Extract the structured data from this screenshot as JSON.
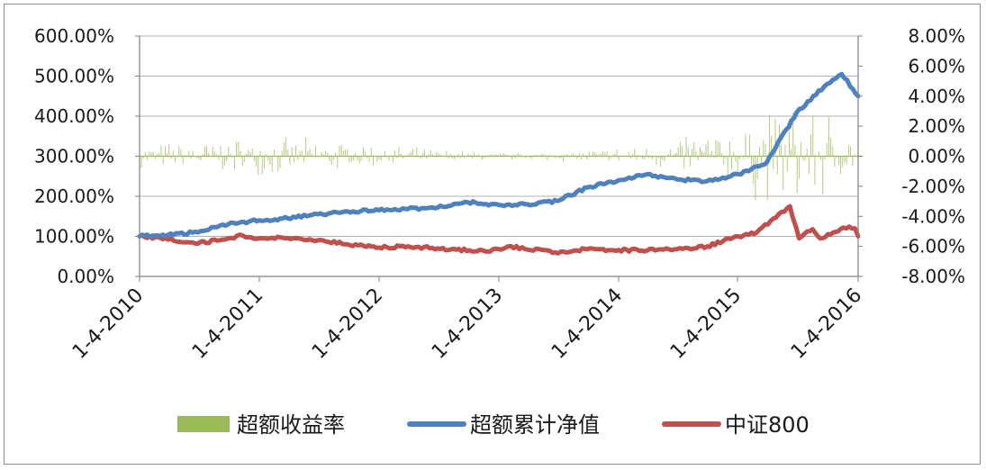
{
  "chart_data": {
    "type": "line",
    "title": "",
    "y_left": {
      "ticks": [
        "600.00%",
        "500.00%",
        "400.00%",
        "300.00%",
        "200.00%",
        "100.00%",
        "0.00%"
      ],
      "range": [
        0,
        600
      ]
    },
    "y_right": {
      "ticks": [
        "8.00%",
        "6.00%",
        "4.00%",
        "2.00%",
        "0.00%",
        "-2.00%",
        "-4.00%",
        "-6.00%",
        "-8.00%"
      ],
      "range": [
        -8,
        8
      ]
    },
    "x_ticks": [
      "1-4-2010",
      "1-4-2011",
      "1-4-2012",
      "1-4-2013",
      "1-4-2014",
      "1-4-2015",
      "1-4-2016"
    ],
    "x_range": [
      "2010-01-04",
      "2016-01-04"
    ],
    "grid": true,
    "legend_position": "bottom",
    "colors": {
      "excess_return": "#9BBB59",
      "excess_nav": "#4F81BD",
      "csi800": "#C0504D",
      "grid": "#b0b0b0",
      "axis": "#808080"
    },
    "series": [
      {
        "name": "超额收益率",
        "kind": "bar",
        "axis": "right",
        "note_values": "daily values, approx. -2% to +2%",
        "seed": 7
      },
      {
        "name": "超额累计净值",
        "kind": "line",
        "axis": "left",
        "points": [
          [
            "2010-01-04",
            100
          ],
          [
            "2010-04-01",
            104
          ],
          [
            "2010-07-01",
            110
          ],
          [
            "2010-10-01",
            130
          ],
          [
            "2011-01-04",
            140
          ],
          [
            "2011-04-01",
            145
          ],
          [
            "2011-07-01",
            155
          ],
          [
            "2011-10-01",
            162
          ],
          [
            "2012-01-04",
            165
          ],
          [
            "2012-04-01",
            168
          ],
          [
            "2012-07-01",
            172
          ],
          [
            "2012-10-01",
            185
          ],
          [
            "2013-01-04",
            178
          ],
          [
            "2013-04-01",
            180
          ],
          [
            "2013-07-01",
            188
          ],
          [
            "2013-10-01",
            222
          ],
          [
            "2014-01-04",
            240
          ],
          [
            "2014-04-01",
            255
          ],
          [
            "2014-07-01",
            242
          ],
          [
            "2014-10-01",
            238
          ],
          [
            "2015-01-04",
            255
          ],
          [
            "2015-04-01",
            285
          ],
          [
            "2015-07-01",
            410
          ],
          [
            "2015-10-01",
            480
          ],
          [
            "2015-11-15",
            505
          ],
          [
            "2016-01-04",
            450
          ]
        ]
      },
      {
        "name": "中证800",
        "kind": "line",
        "axis": "left",
        "points": [
          [
            "2010-01-04",
            100
          ],
          [
            "2010-04-01",
            92
          ],
          [
            "2010-07-01",
            82
          ],
          [
            "2010-10-01",
            95
          ],
          [
            "2010-11-15",
            102
          ],
          [
            "2011-01-04",
            95
          ],
          [
            "2011-04-01",
            96
          ],
          [
            "2011-07-01",
            90
          ],
          [
            "2011-10-01",
            80
          ],
          [
            "2012-01-04",
            72
          ],
          [
            "2012-04-01",
            75
          ],
          [
            "2012-07-01",
            70
          ],
          [
            "2012-12-01",
            62
          ],
          [
            "2013-02-01",
            75
          ],
          [
            "2013-06-25",
            60
          ],
          [
            "2013-10-01",
            68
          ],
          [
            "2014-01-04",
            66
          ],
          [
            "2014-04-01",
            65
          ],
          [
            "2014-07-01",
            68
          ],
          [
            "2014-10-01",
            75
          ],
          [
            "2015-01-04",
            100
          ],
          [
            "2015-03-01",
            110
          ],
          [
            "2015-06-10",
            175
          ],
          [
            "2015-07-08",
            95
          ],
          [
            "2015-08-18",
            118
          ],
          [
            "2015-09-10",
            95
          ],
          [
            "2015-11-20",
            122
          ],
          [
            "2015-12-25",
            120
          ],
          [
            "2016-01-04",
            100
          ]
        ]
      }
    ]
  }
}
